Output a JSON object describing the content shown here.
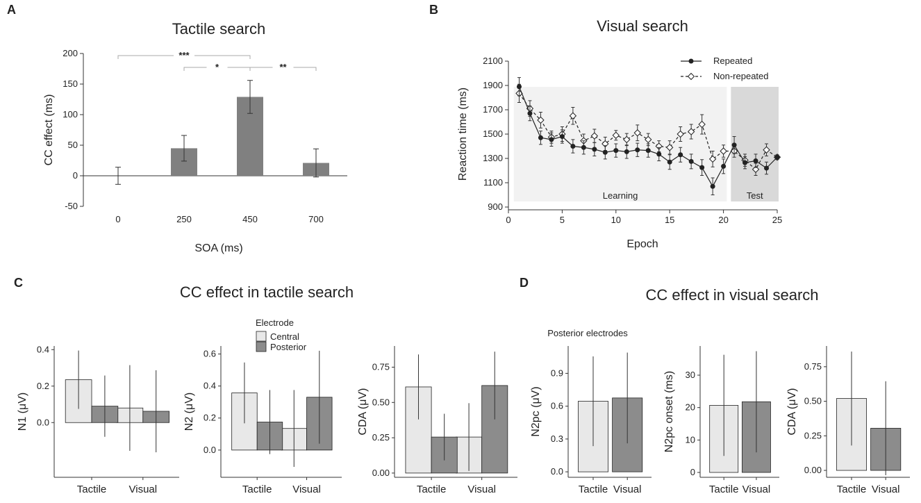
{
  "panels": {
    "A": {
      "letter": "A",
      "title": "Tactile search"
    },
    "B": {
      "letter": "B",
      "title": "Visual search"
    },
    "C": {
      "letter": "C",
      "title": "CC effect in tactile search"
    },
    "D": {
      "letter": "D",
      "title": "CC effect in visual search",
      "subtitle": "Posterior electrodes"
    }
  },
  "legends": {
    "electrode": {
      "title": "Electrode",
      "items": [
        "Central",
        "Posterior"
      ]
    },
    "visual": {
      "items": [
        "Repeated",
        "Non-repeated"
      ]
    }
  },
  "colors": {
    "bar_dark": "#808080",
    "central": "#e8e8e8",
    "posterior": "#8c8c8c",
    "learning_bg": "#f2f2f2",
    "test_bg": "#d9d9d9",
    "line": "#333333"
  },
  "chart_data": [
    {
      "id": "A",
      "type": "bar",
      "title": "Tactile search",
      "xlabel": "SOA (ms)",
      "ylabel": "CC effect (ms)",
      "categories": [
        "0",
        "250",
        "450",
        "700"
      ],
      "values": [
        0,
        45,
        129,
        21
      ],
      "errors": [
        14,
        21,
        27,
        23
      ],
      "ylim": [
        -50,
        200
      ],
      "yticks": [
        -50,
        0,
        50,
        100,
        150,
        200
      ],
      "significance": [
        {
          "from": "0",
          "to": "450",
          "label": "***"
        },
        {
          "from": "250",
          "to": "450",
          "label": "*"
        },
        {
          "from": "450",
          "to": "700",
          "label": "**"
        }
      ]
    },
    {
      "id": "B",
      "type": "line",
      "title": "Visual search",
      "xlabel": "Epoch",
      "ylabel": "Reaction time (ms)",
      "xlim": [
        0,
        25
      ],
      "xticks": [
        0,
        5,
        10,
        15,
        20,
        25
      ],
      "ylim": [
        900,
        2100
      ],
      "yticks": [
        900,
        1100,
        1300,
        1500,
        1700,
        1900,
        2100
      ],
      "phases": [
        {
          "label": "Learning",
          "from": 0.5,
          "to": 20.5
        },
        {
          "label": "Test",
          "from": 20.5,
          "to": 25.5
        }
      ],
      "series": [
        {
          "name": "Repeated",
          "marker": "filled-circle",
          "dash": false,
          "x": [
            1,
            2,
            3,
            4,
            5,
            6,
            7,
            8,
            9,
            10,
            11,
            12,
            13,
            14,
            15,
            16,
            17,
            18,
            19,
            20,
            21,
            22,
            23,
            24,
            25
          ],
          "values": [
            1890,
            1670,
            1470,
            1455,
            1480,
            1400,
            1390,
            1375,
            1350,
            1365,
            1355,
            1370,
            1365,
            1335,
            1270,
            1330,
            1275,
            1225,
            1070,
            1235,
            1410,
            1265,
            1280,
            1220,
            1310
          ],
          "errors": [
            75,
            60,
            55,
            55,
            55,
            55,
            55,
            55,
            55,
            55,
            55,
            55,
            55,
            55,
            60,
            60,
            60,
            65,
            70,
            60,
            70,
            50,
            55,
            50,
            20
          ]
        },
        {
          "name": "Non-repeated",
          "marker": "open-diamond",
          "dash": true,
          "x": [
            1,
            2,
            3,
            4,
            5,
            6,
            7,
            8,
            9,
            10,
            11,
            12,
            13,
            14,
            15,
            16,
            17,
            18,
            19,
            20,
            21,
            22,
            23,
            24,
            25
          ],
          "values": [
            1835,
            1710,
            1615,
            1475,
            1500,
            1650,
            1445,
            1485,
            1420,
            1490,
            1455,
            1510,
            1455,
            1400,
            1390,
            1500,
            1520,
            1580,
            1295,
            1360,
            1360,
            1285,
            1210,
            1370,
            1310
          ],
          "errors": [
            75,
            65,
            65,
            50,
            60,
            70,
            55,
            55,
            55,
            40,
            50,
            65,
            50,
            45,
            55,
            60,
            60,
            80,
            65,
            50,
            50,
            50,
            50,
            50,
            15
          ]
        }
      ]
    },
    {
      "id": "C-N1",
      "type": "bar",
      "ylabel": "N1 (μV)",
      "categories": [
        "Tactile",
        "Visual"
      ],
      "series": [
        {
          "name": "Central",
          "values": [
            0.235,
            0.08
          ],
          "errors": [
            0.16,
            0.235
          ]
        },
        {
          "name": "Posterior",
          "values": [
            0.09,
            0.062
          ],
          "errors": [
            0.168,
            0.225
          ]
        }
      ],
      "ylim": [
        -0.3,
        0.42
      ],
      "yticks": [
        0.0,
        0.2,
        0.4
      ],
      "yticklabels": [
        "0.0",
        "0.2",
        "0.4"
      ]
    },
    {
      "id": "C-N2",
      "type": "bar",
      "ylabel": "N2 (μV)",
      "categories": [
        "Tactile",
        "Visual"
      ],
      "series": [
        {
          "name": "Central",
          "values": [
            0.357,
            0.135
          ],
          "errors": [
            0.19,
            0.24
          ]
        },
        {
          "name": "Posterior",
          "values": [
            0.175,
            0.33
          ],
          "errors": [
            0.2,
            0.29
          ]
        }
      ],
      "ylim": [
        -0.17,
        0.65
      ],
      "yticks": [
        0.0,
        0.2,
        0.4,
        0.6
      ],
      "yticklabels": [
        "0.0",
        "0.2",
        "0.4",
        "0.6"
      ]
    },
    {
      "id": "C-CDA",
      "type": "bar",
      "ylabel": "CDA (μV)",
      "categories": [
        "Tactile",
        "Visual"
      ],
      "series": [
        {
          "name": "Central",
          "values": [
            0.61,
            0.255
          ],
          "errors": [
            0.23,
            0.24
          ]
        },
        {
          "name": "Posterior",
          "values": [
            0.255,
            0.62
          ],
          "errors": [
            0.165,
            0.24
          ]
        }
      ],
      "ylim": [
        -0.03,
        0.9
      ],
      "yticks": [
        0.0,
        0.25,
        0.5,
        0.75
      ],
      "yticklabels": [
        "0.00",
        "0.25",
        "0.50",
        "0.75"
      ]
    },
    {
      "id": "D-N2pc",
      "type": "bar",
      "ylabel": "N2pc (μV)",
      "categories": [
        "Tactile",
        "Visual"
      ],
      "values": [
        0.645,
        0.675
      ],
      "errors": [
        0.41,
        0.415
      ],
      "ylim": [
        -0.05,
        1.15
      ],
      "yticks": [
        0.0,
        0.3,
        0.6,
        0.9
      ],
      "yticklabels": [
        "0.0",
        "0.3",
        "0.6",
        "0.9"
      ]
    },
    {
      "id": "D-N2pc-onset",
      "type": "bar",
      "ylabel": "N2pc onset (ms)",
      "categories": [
        "Tactile",
        "Visual"
      ],
      "values": [
        20.7,
        21.8
      ],
      "errors": [
        15.6,
        15.6
      ],
      "ylim": [
        -1.5,
        39
      ],
      "yticks": [
        0,
        10,
        20,
        30
      ],
      "yticklabels": [
        "0",
        "10",
        "20",
        "30"
      ]
    },
    {
      "id": "D-CDA",
      "type": "bar",
      "ylabel": "CDA (μV)",
      "categories": [
        "Tactile",
        "Visual"
      ],
      "values": [
        0.52,
        0.305
      ],
      "errors": [
        0.34,
        0.34
      ],
      "ylim": [
        -0.05,
        0.9
      ],
      "yticks": [
        0.0,
        0.25,
        0.5,
        0.75
      ],
      "yticklabels": [
        "0.00",
        "0.25",
        "0.50",
        "0.75"
      ]
    }
  ]
}
